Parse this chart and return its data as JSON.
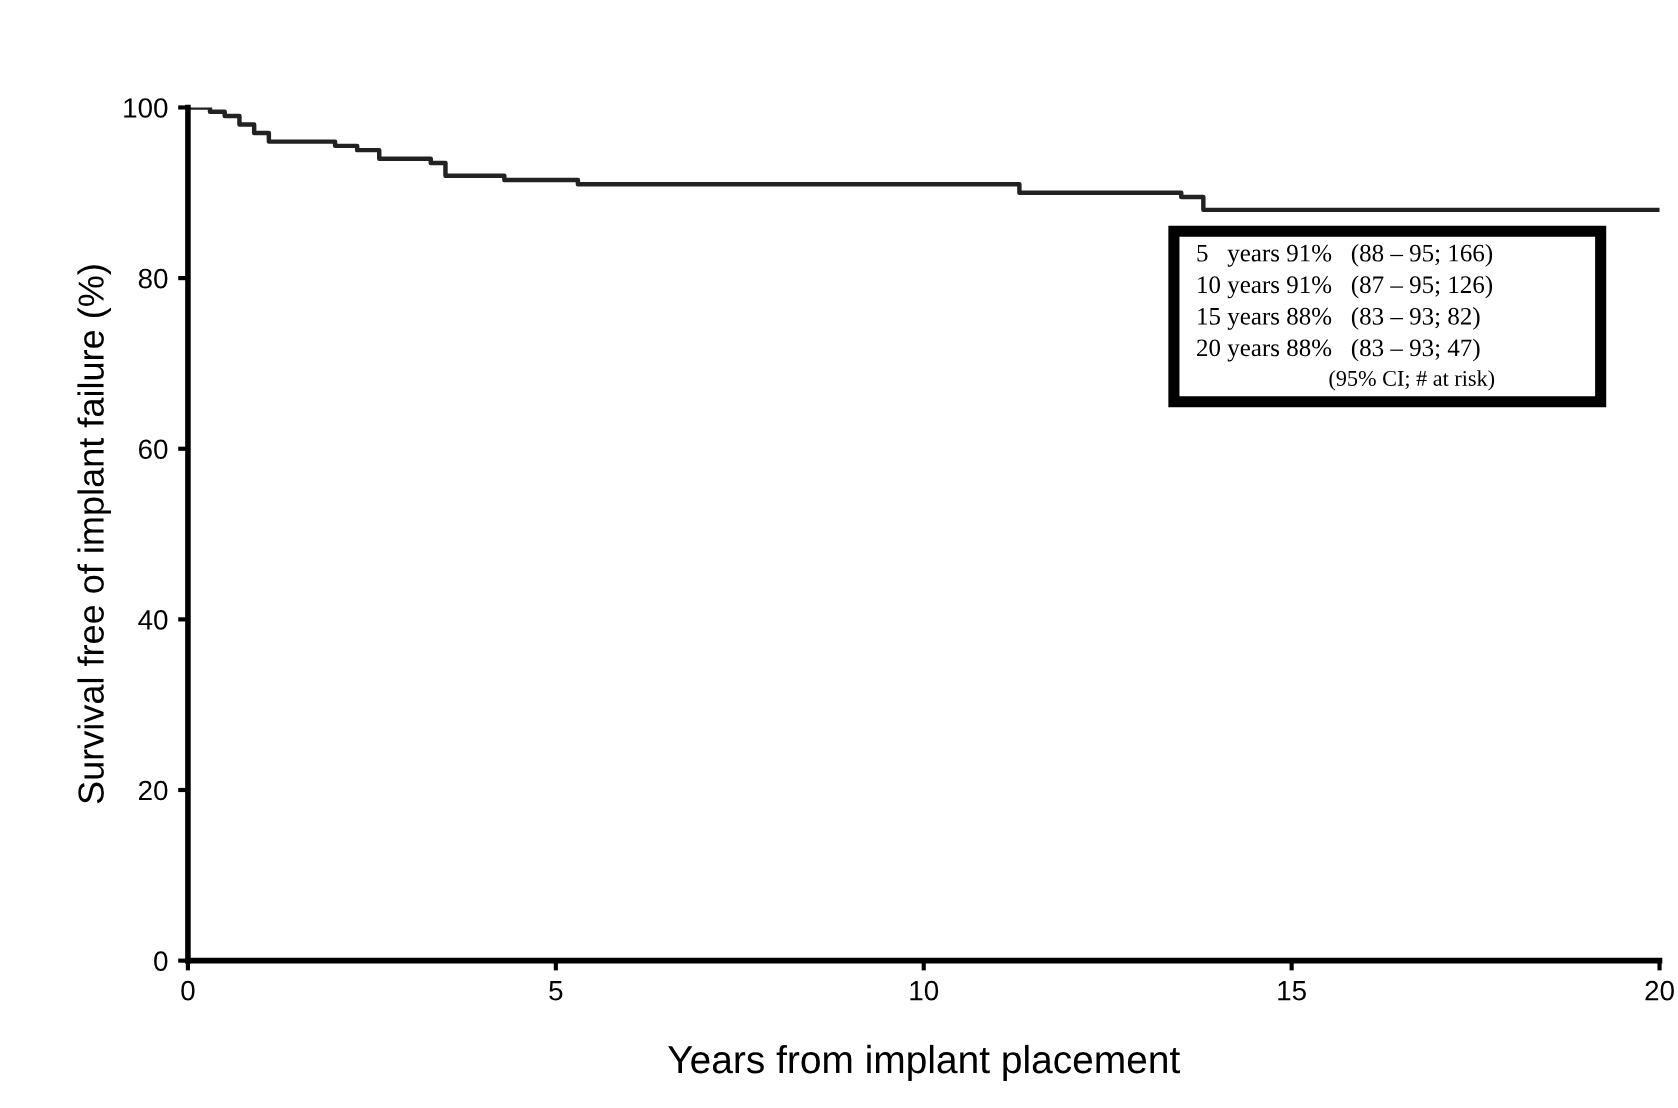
{
  "chart_data": {
    "type": "step",
    "xlabel": "Years from implant placement",
    "ylabel": "Survival free of implant failure (%)",
    "x": [
      0,
      0.3,
      0.5,
      0.7,
      0.9,
      1.1,
      2.0,
      2.3,
      2.6,
      3.3,
      3.5,
      4.3,
      5.3,
      11.3,
      13.5,
      13.8,
      20
    ],
    "series": [
      {
        "color": "#222222",
        "values": [
          100,
          99.5,
          99,
          98,
          97,
          96,
          95.5,
          95,
          94,
          93.5,
          92,
          91.5,
          91,
          90,
          89.5,
          88,
          88
        ]
      }
    ],
    "xlim": [
      0,
      20
    ],
    "ylim": [
      0,
      100
    ],
    "xticks": [
      0,
      5,
      10,
      15,
      20
    ],
    "yticks": [
      0,
      20,
      40,
      60,
      80,
      100
    ],
    "grid": false,
    "annotations": [
      "5   years 91%   (88 – 95; 166)",
      "10 years 91%   (87 – 95; 126)",
      "15 years 88%   (83 – 93; 82)",
      "20 years 88%   (83 – 93; 47)",
      "(95% CI; # at risk)"
    ]
  }
}
